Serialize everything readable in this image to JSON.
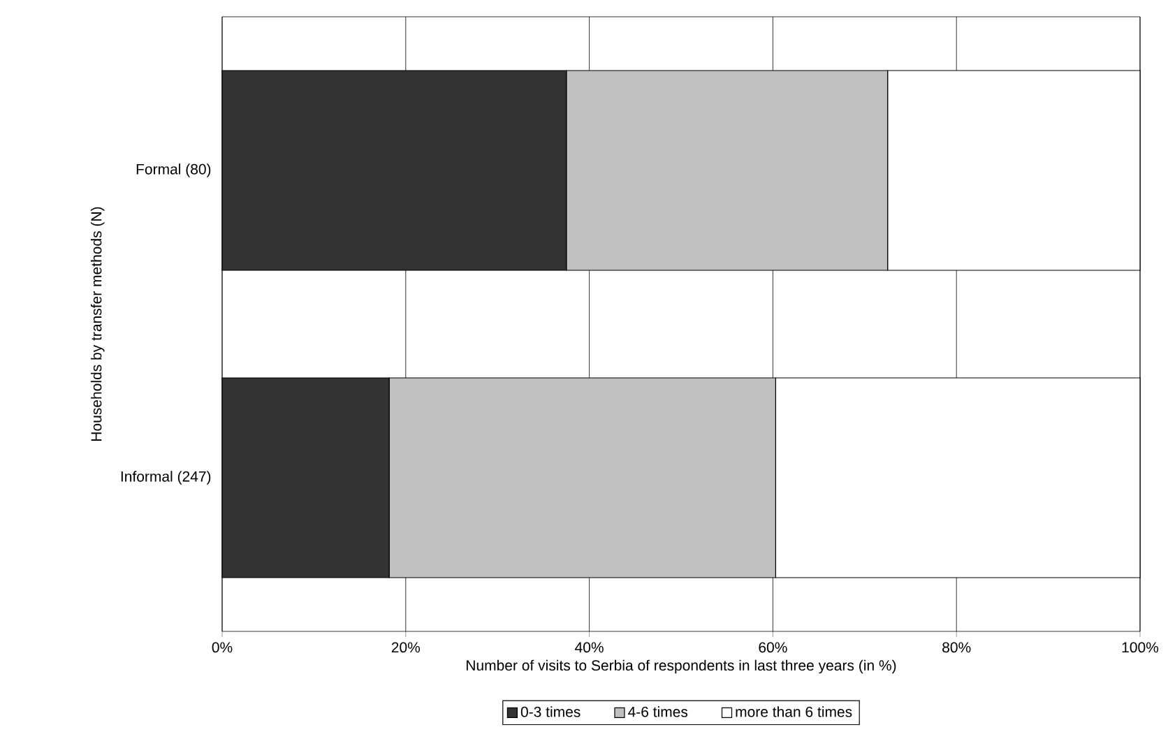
{
  "chart_data": {
    "type": "bar",
    "orientation": "horizontal",
    "stacked": true,
    "xlabel": "Number of visits to Serbia of respondents in last three years (in %)",
    "ylabel": "Households by transfer methods (N)",
    "categories": [
      "Formal (80)",
      "Informal (247)"
    ],
    "series": [
      {
        "name": "0-3 times",
        "color": "#333333",
        "values": [
          37.5,
          18.2
        ]
      },
      {
        "name": "4-6 times",
        "color": "#c0c0c0",
        "values": [
          35,
          42.1
        ]
      },
      {
        "name": "more than 6 times",
        "color": "#ffffff",
        "values": [
          27.5,
          39.7
        ]
      }
    ],
    "xlim": [
      0,
      100
    ],
    "xticks": [
      {
        "value": 0,
        "label": "0%"
      },
      {
        "value": 20,
        "label": "20%"
      },
      {
        "value": 40,
        "label": "40%"
      },
      {
        "value": 60,
        "label": "60%"
      },
      {
        "value": 80,
        "label": "80%"
      },
      {
        "value": 100,
        "label": "100%"
      }
    ],
    "grid": "x",
    "legend": "bottom"
  }
}
